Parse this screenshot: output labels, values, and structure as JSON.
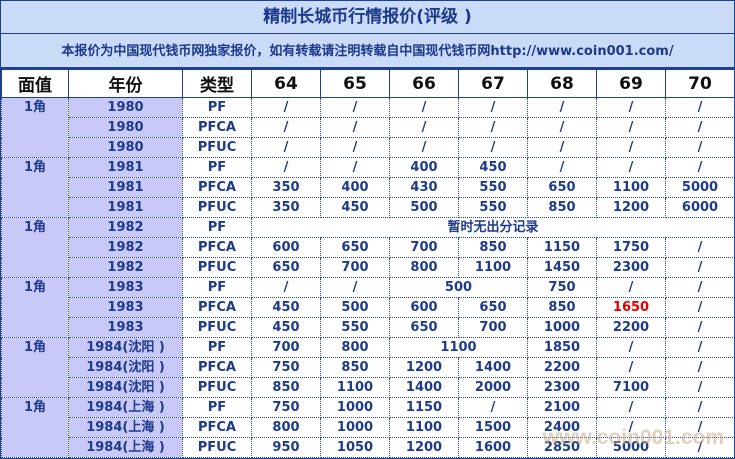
{
  "title": "精制长城币行情报价(评级 )",
  "notice": "本报价为中国现代钱币网独家报价，如有转载请注明转载自中国现代钱币网http://www.coin001.com/",
  "headers": [
    "面值",
    "年份",
    "类型",
    "64",
    "65",
    "66",
    "67",
    "68",
    "69",
    "70"
  ],
  "groups": [
    {
      "face": "1角",
      "rows": [
        {
          "year": "1980",
          "type": "PF",
          "cells": [
            {
              "v": "/"
            },
            {
              "v": "/"
            },
            {
              "v": "/"
            },
            {
              "v": "/"
            },
            {
              "v": "/"
            },
            {
              "v": "/"
            },
            {
              "v": "/"
            }
          ]
        },
        {
          "year": "1980",
          "type": "PFCA",
          "cells": [
            {
              "v": "/"
            },
            {
              "v": "/"
            },
            {
              "v": "/"
            },
            {
              "v": "/"
            },
            {
              "v": "/"
            },
            {
              "v": "/"
            },
            {
              "v": "/"
            }
          ]
        },
        {
          "year": "1980",
          "type": "PFUC",
          "cells": [
            {
              "v": "/"
            },
            {
              "v": "/"
            },
            {
              "v": "/"
            },
            {
              "v": "/"
            },
            {
              "v": "/"
            },
            {
              "v": "/"
            },
            {
              "v": "/"
            }
          ]
        }
      ]
    },
    {
      "face": "1角",
      "rows": [
        {
          "year": "1981",
          "type": "PF",
          "cells": [
            {
              "v": "/"
            },
            {
              "v": "/"
            },
            {
              "v": "400"
            },
            {
              "v": "450"
            },
            {
              "v": "/"
            },
            {
              "v": "/"
            },
            {
              "v": "/"
            }
          ]
        },
        {
          "year": "1981",
          "type": "PFCA",
          "cells": [
            {
              "v": "350"
            },
            {
              "v": "400"
            },
            {
              "v": "430"
            },
            {
              "v": "550"
            },
            {
              "v": "650"
            },
            {
              "v": "1100"
            },
            {
              "v": "5000"
            }
          ]
        },
        {
          "year": "1981",
          "type": "PFUC",
          "cells": [
            {
              "v": "350"
            },
            {
              "v": "450"
            },
            {
              "v": "500"
            },
            {
              "v": "550"
            },
            {
              "v": "850"
            },
            {
              "v": "1200"
            },
            {
              "v": "6000"
            }
          ]
        }
      ]
    },
    {
      "face": "1角",
      "rows": [
        {
          "year": "1982",
          "type": "PF",
          "cells": [
            {
              "v": "暂时无出分记录",
              "span": 7
            }
          ]
        },
        {
          "year": "1982",
          "type": "PFCA",
          "cells": [
            {
              "v": "600"
            },
            {
              "v": "650"
            },
            {
              "v": "700"
            },
            {
              "v": "850"
            },
            {
              "v": "1150"
            },
            {
              "v": "1750"
            },
            {
              "v": "/"
            }
          ]
        },
        {
          "year": "1982",
          "type": "PFUC",
          "cells": [
            {
              "v": "650"
            },
            {
              "v": "700"
            },
            {
              "v": "800"
            },
            {
              "v": "1100"
            },
            {
              "v": "1450"
            },
            {
              "v": "2300"
            },
            {
              "v": "/"
            }
          ]
        }
      ]
    },
    {
      "face": "1角",
      "rows": [
        {
          "year": "1983",
          "type": "PF",
          "cells": [
            {
              "v": "/"
            },
            {
              "v": "/"
            },
            {
              "v": "500",
              "span": 2
            },
            {
              "v": "750"
            },
            {
              "v": "/"
            },
            {
              "v": "/"
            }
          ]
        },
        {
          "year": "1983",
          "type": "PFCA",
          "cells": [
            {
              "v": "450"
            },
            {
              "v": "500"
            },
            {
              "v": "600"
            },
            {
              "v": "650"
            },
            {
              "v": "850"
            },
            {
              "v": "1650",
              "hl": true
            },
            {
              "v": "/"
            }
          ]
        },
        {
          "year": "1983",
          "type": "PFUC",
          "cells": [
            {
              "v": "450"
            },
            {
              "v": "550"
            },
            {
              "v": "650"
            },
            {
              "v": "700"
            },
            {
              "v": "1000"
            },
            {
              "v": "2200"
            },
            {
              "v": "/"
            }
          ]
        }
      ]
    },
    {
      "face": "1角",
      "rows": [
        {
          "year": "1984(沈阳 )",
          "type": "PF",
          "cells": [
            {
              "v": "700"
            },
            {
              "v": "800"
            },
            {
              "v": "1100",
              "span": 2
            },
            {
              "v": "1850"
            },
            {
              "v": "/"
            },
            {
              "v": "/"
            }
          ]
        },
        {
          "year": "1984(沈阳 )",
          "type": "PFCA",
          "cells": [
            {
              "v": "750"
            },
            {
              "v": "850"
            },
            {
              "v": "1200"
            },
            {
              "v": "1400"
            },
            {
              "v": "2200"
            },
            {
              "v": "/"
            },
            {
              "v": "/"
            }
          ]
        },
        {
          "year": "1984(沈阳 )",
          "type": "PFUC",
          "cells": [
            {
              "v": "850"
            },
            {
              "v": "1100"
            },
            {
              "v": "1400"
            },
            {
              "v": "2000"
            },
            {
              "v": "2300"
            },
            {
              "v": "7100"
            },
            {
              "v": "/"
            }
          ]
        }
      ]
    },
    {
      "face": "1角",
      "rows": [
        {
          "year": "1984(上海 )",
          "type": "PF",
          "cells": [
            {
              "v": "750"
            },
            {
              "v": "1000"
            },
            {
              "v": "1150"
            },
            {
              "v": "/"
            },
            {
              "v": "2100"
            },
            {
              "v": "/"
            },
            {
              "v": "/"
            }
          ]
        },
        {
          "year": "1984(上海 )",
          "type": "PFCA",
          "cells": [
            {
              "v": "800"
            },
            {
              "v": "1000"
            },
            {
              "v": "1100"
            },
            {
              "v": "1500"
            },
            {
              "v": "2400"
            },
            {
              "v": "/"
            },
            {
              "v": "/"
            }
          ]
        },
        {
          "year": "1984(上海 )",
          "type": "PFUC",
          "cells": [
            {
              "v": "950"
            },
            {
              "v": "1050"
            },
            {
              "v": "1200"
            },
            {
              "v": "1600"
            },
            {
              "v": "2850"
            },
            {
              "v": "5000"
            },
            {
              "v": "/"
            }
          ]
        }
      ]
    }
  ],
  "watermark": "www.coin001.com",
  "colors": {
    "border": "#1f3f8f",
    "header_bg": "#c9dbf7",
    "label_bg": "#c9c9f7",
    "text": "#1e3a8a",
    "highlight": "#e10000"
  }
}
